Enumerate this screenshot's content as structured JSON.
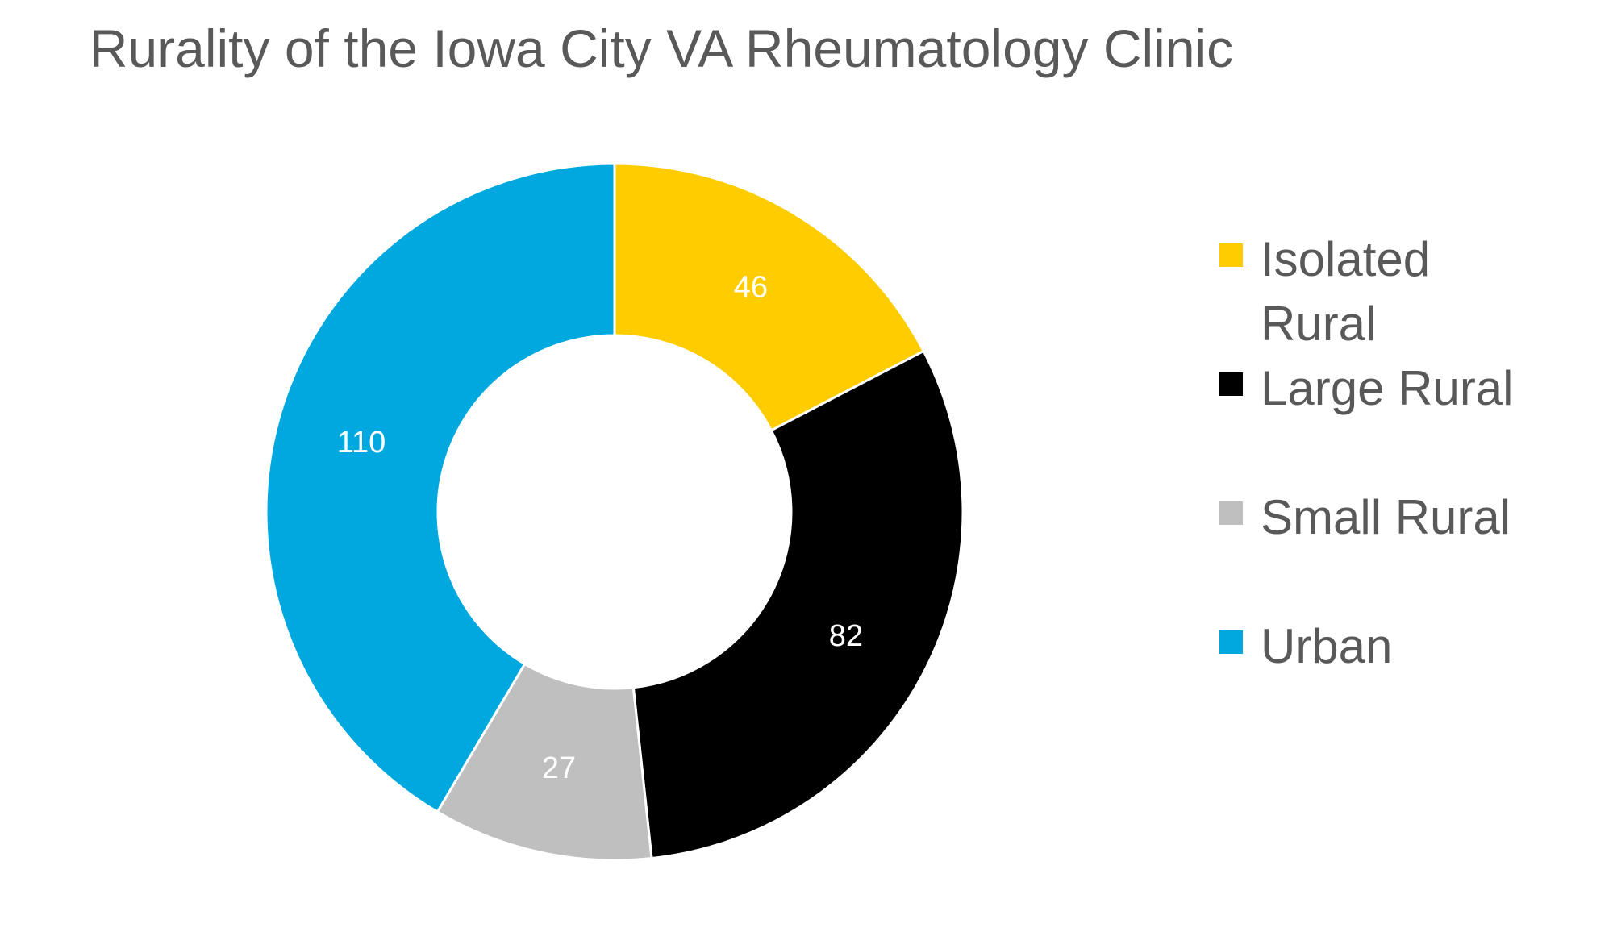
{
  "chart_data": {
    "type": "pie",
    "donut": true,
    "title": "Rurality of the Iowa City VA Rheumatology Clinic",
    "categories": [
      "Isolated Rural",
      "Large Rural",
      "Small Rural",
      "Urban"
    ],
    "values": [
      46,
      82,
      27,
      110
    ],
    "data_labels": [
      "46",
      "82",
      "27",
      "110"
    ],
    "colors": [
      "#FFCC00",
      "#000000",
      "#BFBFBF",
      "#00A8E0"
    ],
    "label_colors": [
      "#FFFFFF",
      "#FFFFFF",
      "#FFFFFF",
      "#FFFFFF"
    ],
    "legend_position": "right"
  }
}
